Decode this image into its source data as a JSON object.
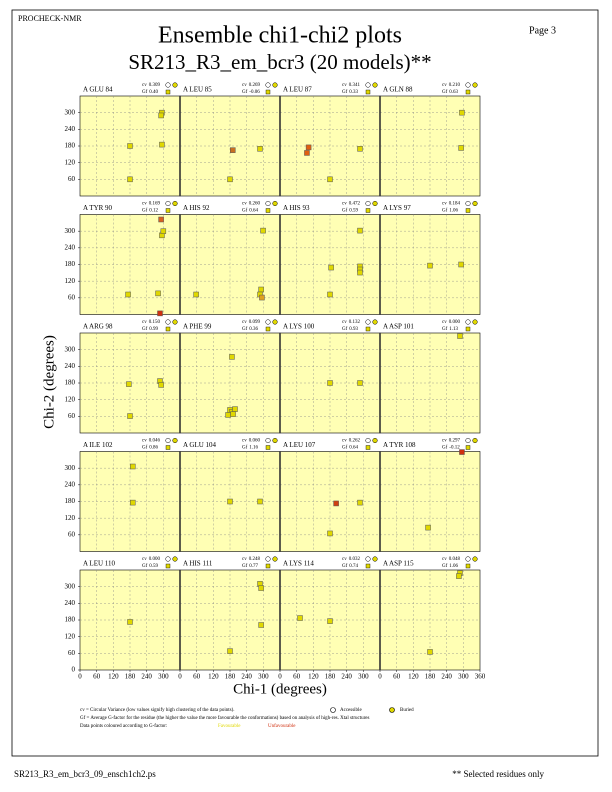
{
  "header": {
    "program": "PROCHECK-NMR",
    "page": "Page  3"
  },
  "chart_data": {
    "type": "scatter",
    "title": "Ensemble chi1-chi2 plots",
    "subtitle": "SR213_R3_em_bcr3 (20 models)**",
    "xlabel": "Chi-1 (degrees)",
    "ylabel": "Chi-2 (degrees)",
    "xlim": [
      0,
      360
    ],
    "ylim": [
      0,
      360
    ],
    "xticks": [
      0,
      60,
      120,
      180,
      240,
      300,
      360
    ],
    "yticks": [
      0,
      60,
      120,
      180,
      240,
      300,
      360
    ],
    "grid": true,
    "background": "#ffffb4",
    "cv_label": "cv",
    "gf_label": "Gf",
    "panels": [
      {
        "label": "A GLU 84",
        "cv": "0.309",
        "gf": "0.40",
        "x": [
          180,
          295,
          292,
          295,
          180
        ],
        "y": [
          180,
          300,
          290,
          185,
          60
        ],
        "colors": [
          "#e0d800",
          "#e0d800",
          "#e0d800",
          "#e0d800",
          "#e0d800"
        ]
      },
      {
        "label": "A LEU 85",
        "cv": "0.269",
        "gf": "-0.06",
        "x": [
          190,
          288,
          180
        ],
        "y": [
          165,
          170,
          60
        ],
        "colors": [
          "#c87020",
          "#e0d800",
          "#e0d800"
        ]
      },
      {
        "label": "A LEU 87",
        "cv": "0.341",
        "gf": "0.33",
        "x": [
          97,
          103,
          180,
          288
        ],
        "y": [
          155,
          175,
          60,
          170
        ],
        "colors": [
          "#e06010",
          "#e06010",
          "#e0d800",
          "#e0d800"
        ]
      },
      {
        "label": "A GLN 88",
        "cv": "0.210",
        "gf": "0.63",
        "x": [
          295,
          292
        ],
        "y": [
          300,
          173
        ],
        "colors": [
          "#e0d800",
          "#e0d800"
        ]
      },
      {
        "label": "A TYR 90",
        "cv": "0.169",
        "gf": "0.12",
        "x": [
          173,
          281,
          295,
          300,
          292,
          288
        ],
        "y": [
          72,
          76,
          285,
          300,
          342,
          4
        ],
        "colors": [
          "#e0d800",
          "#e0d800",
          "#e0d800",
          "#e0d800",
          "#d86020",
          "#d03010"
        ]
      },
      {
        "label": "A HIS 92",
        "cv": "0.260",
        "gf": "0.64",
        "x": [
          58,
          299,
          292,
          288,
          295
        ],
        "y": [
          72,
          302,
          90,
          72,
          61
        ],
        "colors": [
          "#e0d800",
          "#e0d800",
          "#e0d800",
          "#e0d800",
          "#e0a020"
        ]
      },
      {
        "label": "A HIS 93",
        "cv": "0.472",
        "gf": "0.59",
        "x": [
          184,
          180,
          288,
          288,
          288,
          288
        ],
        "y": [
          169,
          72,
          173,
          162,
          151,
          302
        ],
        "colors": [
          "#e0d800",
          "#e0d800",
          "#e0d800",
          "#e0d800",
          "#e0d800",
          "#e0d800"
        ]
      },
      {
        "label": "A LYS 97",
        "cv": "0.184",
        "gf": "1.06",
        "x": [
          180,
          292
        ],
        "y": [
          176,
          180
        ],
        "colors": [
          "#e0d800",
          "#e0d800"
        ]
      },
      {
        "label": "A ARG 98",
        "cv": "0.150",
        "gf": "0.99",
        "x": [
          176,
          288,
          292,
          180
        ],
        "y": [
          176,
          187,
          173,
          61
        ],
        "colors": [
          "#e0d800",
          "#e0d800",
          "#e0d800",
          "#e0d800"
        ]
      },
      {
        "label": "A PHE 99",
        "cv": "0.099",
        "gf": "0.36",
        "x": [
          187,
          180,
          187,
          198,
          191,
          173
        ],
        "y": [
          274,
          83,
          76,
          86,
          68,
          65
        ],
        "colors": [
          "#e0d800",
          "#e0d800",
          "#e0d800",
          "#e0d800",
          "#e0d800",
          "#e0d800"
        ]
      },
      {
        "label": "A LYS 100",
        "cv": "0.132",
        "gf": "0.93",
        "x": [
          180,
          288
        ],
        "y": [
          180,
          180
        ],
        "colors": [
          "#e0d800",
          "#e0d800"
        ]
      },
      {
        "label": "A ASP 101",
        "cv": "0.000",
        "gf": "1.13",
        "x": [
          288
        ],
        "y": [
          349
        ],
        "colors": [
          "#e0d800"
        ]
      },
      {
        "label": "A ILE 102",
        "cv": "0.046",
        "gf": "0.86",
        "x": [
          190,
          190
        ],
        "y": [
          306,
          176
        ],
        "colors": [
          "#e0d800",
          "#e0d800"
        ]
      },
      {
        "label": "A GLU 104",
        "cv": "0.060",
        "gf": "1.16",
        "x": [
          180,
          288
        ],
        "y": [
          180,
          180
        ],
        "colors": [
          "#e0d800",
          "#e0d800"
        ]
      },
      {
        "label": "A LEU 107",
        "cv": "0.262",
        "gf": "0.64",
        "x": [
          202,
          288,
          180
        ],
        "y": [
          173,
          176,
          65
        ],
        "colors": [
          "#d04010",
          "#e0d800",
          "#e0d800"
        ]
      },
      {
        "label": "A TYR 108",
        "cv": "0.297",
        "gf": "-0.12",
        "x": [
          295,
          173
        ],
        "y": [
          358,
          86
        ],
        "colors": [
          "#d03010",
          "#e0d800"
        ]
      },
      {
        "label": "A LEU 110",
        "cv": "0.000",
        "gf": "0.59",
        "x": [
          180
        ],
        "y": [
          173
        ],
        "colors": [
          "#e0d800"
        ]
      },
      {
        "label": "A HIS 111",
        "cv": "0.248",
        "gf": "0.77",
        "x": [
          288,
          292,
          292,
          180
        ],
        "y": [
          310,
          295,
          162,
          68
        ],
        "colors": [
          "#e0d800",
          "#e0d800",
          "#e0d800",
          "#e0d800"
        ]
      },
      {
        "label": "A LYS 114",
        "cv": "0.032",
        "gf": "0.74",
        "x": [
          72,
          180
        ],
        "y": [
          187,
          176
        ],
        "colors": [
          "#e0d800",
          "#e0d800"
        ]
      },
      {
        "label": "A ASP 115",
        "cv": "0.048",
        "gf": "1.06",
        "x": [
          288,
          284,
          180
        ],
        "y": [
          349,
          338,
          65
        ],
        "colors": [
          "#e0d800",
          "#e0d800",
          "#e0d800"
        ]
      }
    ]
  },
  "legend": {
    "cv_text": "cv = Circular Variance (low values signify high clustering of the data points).",
    "accessible": "Accessible",
    "buried": "Buried",
    "gf_text": "Gf = Average G-factor for the residue (the higher the value the more favourable the conformations) based on analysis of high-res. Xtal structures",
    "colour_text": "Data points coloured according to G-factor:",
    "favourable": "Favourable",
    "unfavourable": "Unfavourable"
  },
  "footer": {
    "file": "SR213_R3_em_bcr3_09_ensch1ch2.ps",
    "note": "** Selected residues only"
  }
}
